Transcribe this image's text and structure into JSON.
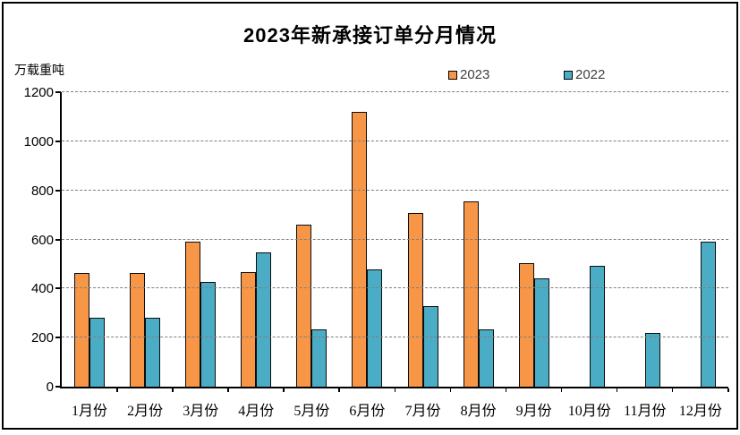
{
  "title": "2023年新承接订单分月情况",
  "y_unit_label": "万载重吨",
  "legend": [
    {
      "label": "2023",
      "color": "#F79646"
    },
    {
      "label": "2022",
      "color": "#4BACC6"
    }
  ],
  "chart_data": {
    "type": "bar",
    "title": "2023年新承接订单分月情况",
    "ylabel": "万载重吨",
    "categories": [
      "1月份",
      "2月份",
      "3月份",
      "4月份",
      "5月份",
      "6月份",
      "7月份",
      "8月份",
      "9月份",
      "10月份",
      "11月份",
      "12月份"
    ],
    "series": [
      {
        "name": "2023",
        "color": "#F79646",
        "values": [
          462,
          465,
          591,
          467,
          660,
          1120,
          708,
          754,
          504,
          null,
          null,
          null
        ]
      },
      {
        "name": "2022",
        "color": "#4BACC6",
        "values": [
          282,
          282,
          428,
          548,
          232,
          478,
          327,
          234,
          442,
          493,
          220,
          591
        ]
      }
    ],
    "ylim": [
      0,
      1200
    ],
    "yticks": [
      0,
      200,
      400,
      600,
      800,
      1000,
      1200
    ],
    "grid": "horizontal-dashed",
    "legend_position": "top-center",
    "bar_border_color": "#0d0d0d",
    "gridline_color": "#7f7f7f"
  }
}
